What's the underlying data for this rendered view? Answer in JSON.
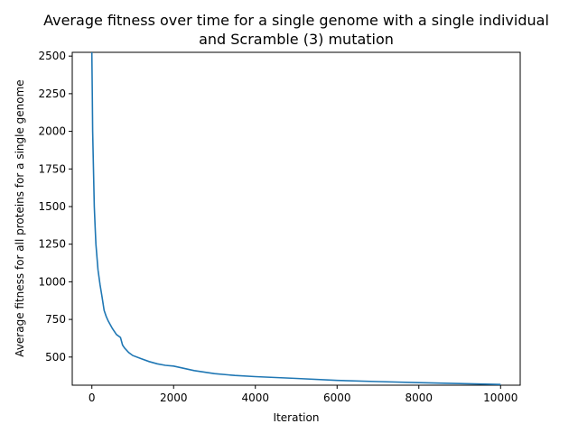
{
  "chart_data": {
    "type": "line",
    "title": [
      "Average fitness over time for a single genome with a single individual",
      "and Scramble (3) mutation"
    ],
    "xlabel": "Iteration",
    "ylabel": "Average fitness for all proteins for a single genome",
    "xlim": [
      -480,
      10480
    ],
    "ylim": [
      313,
      2525
    ],
    "xticks": [
      0,
      2000,
      4000,
      6000,
      8000,
      10000
    ],
    "yticks": [
      500,
      750,
      1000,
      1250,
      1500,
      1750,
      2000,
      2250,
      2500
    ],
    "grid": false,
    "legend": "none",
    "color": "#1f77b4",
    "series": [
      {
        "x": [
          0,
          10,
          20,
          40,
          60,
          80,
          100,
          150,
          200,
          250,
          300,
          350,
          400,
          500,
          600,
          700,
          750,
          800,
          900,
          1000,
          1200,
          1400,
          1600,
          1800,
          2000,
          2500,
          3000,
          3500,
          4000,
          5000,
          6000,
          7000,
          8000,
          9000,
          10000
        ],
        "y": [
          2525,
          2250,
          2000,
          1750,
          1500,
          1370,
          1250,
          1080,
          980,
          900,
          810,
          770,
          740,
          690,
          650,
          630,
          580,
          560,
          530,
          510,
          490,
          470,
          455,
          445,
          440,
          410,
          390,
          378,
          370,
          358,
          345,
          337,
          330,
          324,
          318
        ]
      }
    ]
  }
}
